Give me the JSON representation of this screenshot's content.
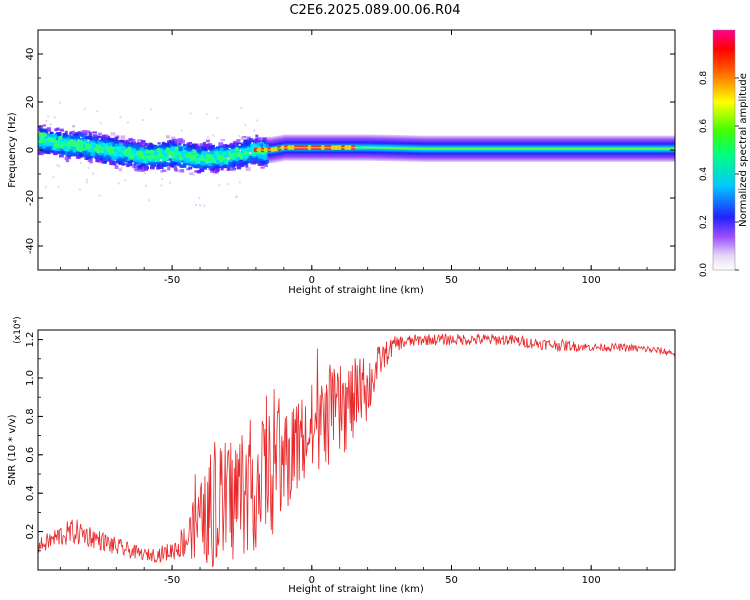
{
  "title": "C2E6.2025.089.00.06.R04",
  "colors": {
    "snr_line": "#e8282a",
    "axis": "#000000",
    "background": "#ffffff"
  },
  "chart_data": [
    {
      "type": "heatmap",
      "title": "C2E6.2025.089.00.06.R04",
      "xlabel": "Height of straight line (km)",
      "ylabel": "Frequency (Hz)",
      "xlim": [
        -98,
        130
      ],
      "ylim": [
        -50,
        50
      ],
      "x_ticks": [
        -50,
        0,
        50,
        100
      ],
      "y_ticks": [
        -40,
        -20,
        0,
        20,
        40
      ],
      "colorbar": {
        "label": "Normalized spectral amplitude",
        "range": [
          0,
          1
        ],
        "ticks": [
          "0.0",
          "0.2",
          "0.4",
          "0.6",
          "0.8"
        ],
        "colormap": "rainbow (white-violet-blue-cyan-green-yellow-red-magenta)"
      },
      "description_points": {
        "ridge_center_hz": [
          [
            -98,
            5
          ],
          [
            -90,
            3
          ],
          [
            -80,
            2
          ],
          [
            -70,
            0
          ],
          [
            -60,
            -2
          ],
          [
            -50,
            -1
          ],
          [
            -40,
            -3
          ],
          [
            -30,
            -2
          ],
          [
            -22,
            0
          ],
          [
            -15,
            0
          ],
          [
            -10,
            1
          ],
          [
            0,
            1
          ],
          [
            10,
            1
          ],
          [
            20,
            1
          ],
          [
            40,
            0.5
          ],
          [
            60,
            0.5
          ],
          [
            80,
            0.5
          ],
          [
            100,
            0.5
          ],
          [
            120,
            0.5
          ],
          [
            130,
            0.5
          ]
        ],
        "peak_amplitude_range_km": [
          -20,
          15
        ]
      }
    },
    {
      "type": "line",
      "xlabel": "Height of straight line (km)",
      "ylabel": "SNR (10 * v/v)",
      "y_multiplier": "(x10⁴)",
      "xlim": [
        -98,
        130
      ],
      "ylim": [
        0,
        1.25
      ],
      "x_ticks": [
        -50,
        0,
        50,
        100
      ],
      "y_ticks": [
        "0.2",
        "0.4",
        "0.6",
        "0.8",
        "1.0",
        "1.2"
      ],
      "series": [
        {
          "color": "#e8282a",
          "x": [
            -98,
            -90,
            -85,
            -80,
            -75,
            -70,
            -65,
            -60,
            -55,
            -50,
            -45,
            -40,
            -35,
            -30,
            -25,
            -20,
            -15,
            -10,
            -5,
            0,
            5,
            10,
            15,
            20,
            25,
            30,
            40,
            50,
            60,
            70,
            80,
            90,
            100,
            110,
            120,
            130
          ],
          "y": [
            0.12,
            0.18,
            0.2,
            0.18,
            0.15,
            0.12,
            0.1,
            0.08,
            0.08,
            0.1,
            0.16,
            0.25,
            0.3,
            0.35,
            0.42,
            0.45,
            0.5,
            0.55,
            0.65,
            0.72,
            0.78,
            0.82,
            0.88,
            0.95,
            1.1,
            1.18,
            1.2,
            1.2,
            1.2,
            1.2,
            1.18,
            1.17,
            1.16,
            1.16,
            1.15,
            1.13
          ],
          "noise_amp": [
            0.04,
            0.06,
            0.07,
            0.06,
            0.05,
            0.05,
            0.04,
            0.03,
            0.04,
            0.05,
            0.1,
            0.2,
            0.3,
            0.35,
            0.35,
            0.35,
            0.33,
            0.3,
            0.28,
            0.26,
            0.25,
            0.25,
            0.22,
            0.18,
            0.08,
            0.04,
            0.03,
            0.03,
            0.03,
            0.03,
            0.03,
            0.03,
            0.02,
            0.02,
            0.02,
            0.02
          ]
        }
      ]
    }
  ]
}
